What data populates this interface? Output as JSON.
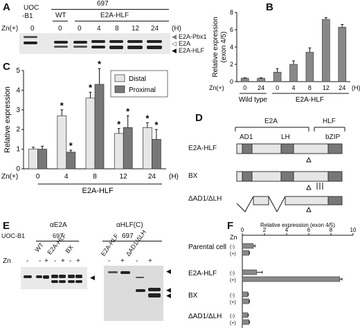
{
  "panelA": {
    "label": "A",
    "uoc": "UOC",
    "b1": "-B1",
    "line697": "697",
    "wt": "WT",
    "e2ahlf": "E2A-HLF",
    "zn": "Zn(+)",
    "times": [
      "0",
      "0",
      "0",
      "4",
      "8",
      "12",
      "24"
    ],
    "unit": "(H)",
    "bands": [
      "E2A-Pbx1",
      "E2A",
      "E2A-HLF"
    ]
  },
  "chartB": {
    "label": "B",
    "type": "bar",
    "ylabel": "Relative expression",
    "ylabel2": "(exon 4/5)",
    "ylim": [
      0,
      8
    ],
    "yticks": [
      "0",
      "2",
      "4",
      "6",
      "8"
    ],
    "categories": [
      "0",
      "24",
      "0",
      "4",
      "8",
      "12",
      "24"
    ],
    "values": [
      0.4,
      0.4,
      1.1,
      2.0,
      3.4,
      7.2,
      6.3
    ],
    "errors": [
      0.05,
      0.05,
      0.4,
      0.4,
      0.5,
      0.2,
      0.3
    ],
    "zn": "Zn(+)",
    "unit": "(H)",
    "group1": "Wild type",
    "group2": "E2A-HLF"
  },
  "chartC": {
    "label": "C",
    "type": "bar",
    "ylabel": "Relative expression",
    "ylim": [
      0,
      5
    ],
    "yticks": [
      "0",
      "1",
      "2",
      "3",
      "4",
      "5"
    ],
    "categories": [
      "0",
      "4",
      "8",
      "12",
      "24"
    ],
    "series": [
      {
        "name": "Distal",
        "values": [
          1.0,
          2.7,
          3.6,
          1.8,
          2.1
        ],
        "errors": [
          0.1,
          0.3,
          0.3,
          0.25,
          0.25
        ],
        "color": "#e6e6e6"
      },
      {
        "name": "Proximal",
        "values": [
          1.0,
          0.85,
          4.3,
          2.1,
          1.5
        ],
        "errors": [
          0.15,
          0.1,
          0.8,
          0.6,
          0.5
        ],
        "color": "#777777"
      }
    ],
    "stars": [
      "",
      "*",
      "*",
      "*",
      "*"
    ],
    "zn": "Zn(+)",
    "unit": "(H)",
    "group": "E2A-HLF"
  },
  "panelD": {
    "label": "D",
    "e2a": "E2A",
    "hlf": "HLF",
    "ad1": "AD1",
    "lh": "LH",
    "bzip": "bZIP",
    "constructs": [
      "E2A-HLF",
      "BX",
      "ΔAD1/ΔLH"
    ]
  },
  "panelE": {
    "label": "E",
    "ae2a": "αE2A",
    "ahlf": "αHLF(C)",
    "uoc": "UOC-B1",
    "line697": "697",
    "lanes": [
      "WT",
      "E2A-HLF",
      "BX"
    ],
    "lanes2": [
      "E2A-HLF",
      "ΔAD1/ΔLH"
    ],
    "zn": "Zn",
    "signs": [
      "-",
      "-",
      "+",
      "-",
      "+",
      "-",
      "+"
    ],
    "signs2": [
      "-",
      "+",
      "-",
      "+"
    ]
  },
  "chartF": {
    "label": "F",
    "type": "bar",
    "title": "Relative expression (exon 4/5)",
    "xlim": [
      0,
      10
    ],
    "xticks": [
      "0",
      "2",
      "4",
      "6",
      "8",
      "10"
    ],
    "zn": "Zn",
    "groups": [
      "Parental cell",
      "E2A-HLF",
      "BX",
      "ΔAD1/ΔLH"
    ],
    "signs": [
      "(-)",
      "(+)"
    ],
    "values": [
      1.0,
      0.6,
      1.3,
      8.8,
      0.5,
      0.6,
      0.5,
      0.6
    ],
    "errors": [
      0.15,
      0.05,
      0.5,
      0.2,
      0.05,
      0.05,
      0.05,
      0.05
    ]
  }
}
